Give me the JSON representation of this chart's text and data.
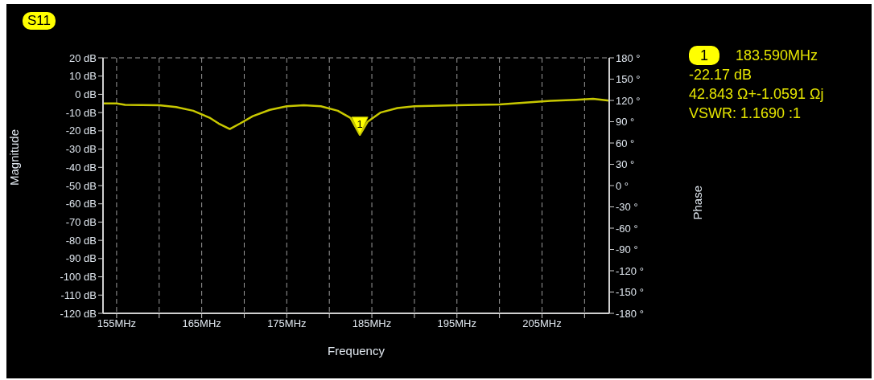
{
  "chart_data": {
    "type": "line",
    "title": "S11",
    "xlabel": "Frequency",
    "ylabel": "Magnitude",
    "y2label": "Phase",
    "x": [
      153.4,
      155,
      156,
      160,
      162,
      164,
      166,
      167,
      168.3,
      169.5,
      171,
      173,
      175,
      177,
      179,
      181,
      182.5,
      183.59,
      184.5,
      186,
      188,
      190,
      195,
      200,
      203,
      206,
      209,
      211,
      212.9
    ],
    "series": [
      {
        "color": "#c8c800",
        "values": [
          -5,
          -5,
          -5.8,
          -6,
          -7,
          -9,
          -13,
          -16,
          -19,
          -16,
          -12,
          -8.5,
          -6.5,
          -6,
          -6.5,
          -9,
          -13,
          -22.17,
          -15,
          -10,
          -7.5,
          -6.5,
          -6,
          -5.5,
          -4.5,
          -3.5,
          -3,
          -2.5,
          -3.5
        ]
      }
    ],
    "xlim": [
      153.4,
      212.9
    ],
    "xticks": [
      {
        "value": 155,
        "label": "155MHz"
      },
      {
        "value": 160,
        "label": null
      },
      {
        "value": 165,
        "label": "165MHz"
      },
      {
        "value": 170,
        "label": null
      },
      {
        "value": 175,
        "label": "175MHz"
      },
      {
        "value": 180,
        "label": null
      },
      {
        "value": 185,
        "label": "185MHz"
      },
      {
        "value": 190,
        "label": null
      },
      {
        "value": 195,
        "label": "195MHz"
      },
      {
        "value": 200,
        "label": null
      },
      {
        "value": 205,
        "label": "205MHz"
      },
      {
        "value": 210,
        "label": null
      }
    ],
    "ylim": [
      -120,
      20
    ],
    "yticks": [
      {
        "value": 20,
        "label": "20 dB"
      },
      {
        "value": 10,
        "label": "10 dB"
      },
      {
        "value": 0,
        "label": "0 dB"
      },
      {
        "value": -10,
        "label": "-10 dB"
      },
      {
        "value": -20,
        "label": "-20 dB"
      },
      {
        "value": -30,
        "label": "-30 dB"
      },
      {
        "value": -40,
        "label": "-40 dB"
      },
      {
        "value": -50,
        "label": "-50 dB"
      },
      {
        "value": -60,
        "label": "-60 dB"
      },
      {
        "value": -70,
        "label": "-70 dB"
      },
      {
        "value": -80,
        "label": "-80 dB"
      },
      {
        "value": -90,
        "label": "-90 dB"
      },
      {
        "value": -100,
        "label": "-100 dB"
      },
      {
        "value": -110,
        "label": "-110 dB"
      },
      {
        "value": -120,
        "label": "-120 dB"
      }
    ],
    "y2lim": [
      -180,
      180
    ],
    "y2ticks": [
      {
        "value": 180,
        "label": "180 °"
      },
      {
        "value": 150,
        "label": "150 °"
      },
      {
        "value": 120,
        "label": "120 °"
      },
      {
        "value": 90,
        "label": "90 °"
      },
      {
        "value": 60,
        "label": "60 °"
      },
      {
        "value": 30,
        "label": "30 °"
      },
      {
        "value": 0,
        "label": "0 °"
      },
      {
        "value": -30,
        "label": "-30 °"
      },
      {
        "value": -60,
        "label": "-60 °"
      },
      {
        "value": -90,
        "label": "-90 °"
      },
      {
        "value": -120,
        "label": "-120 °"
      },
      {
        "value": -150,
        "label": "-150 °"
      },
      {
        "value": -180,
        "label": "-180 °"
      }
    ],
    "annotations": [
      {
        "text": "1",
        "x": 183.59,
        "y": -22.17
      },
      "1",
      "183.590MHz",
      "-22.17 dB",
      "42.843 Ω+-1.0591 Ωj",
      "VSWR: 1.1690 :1"
    ],
    "grid": true,
    "marker": "none",
    "line_style": "solid"
  }
}
